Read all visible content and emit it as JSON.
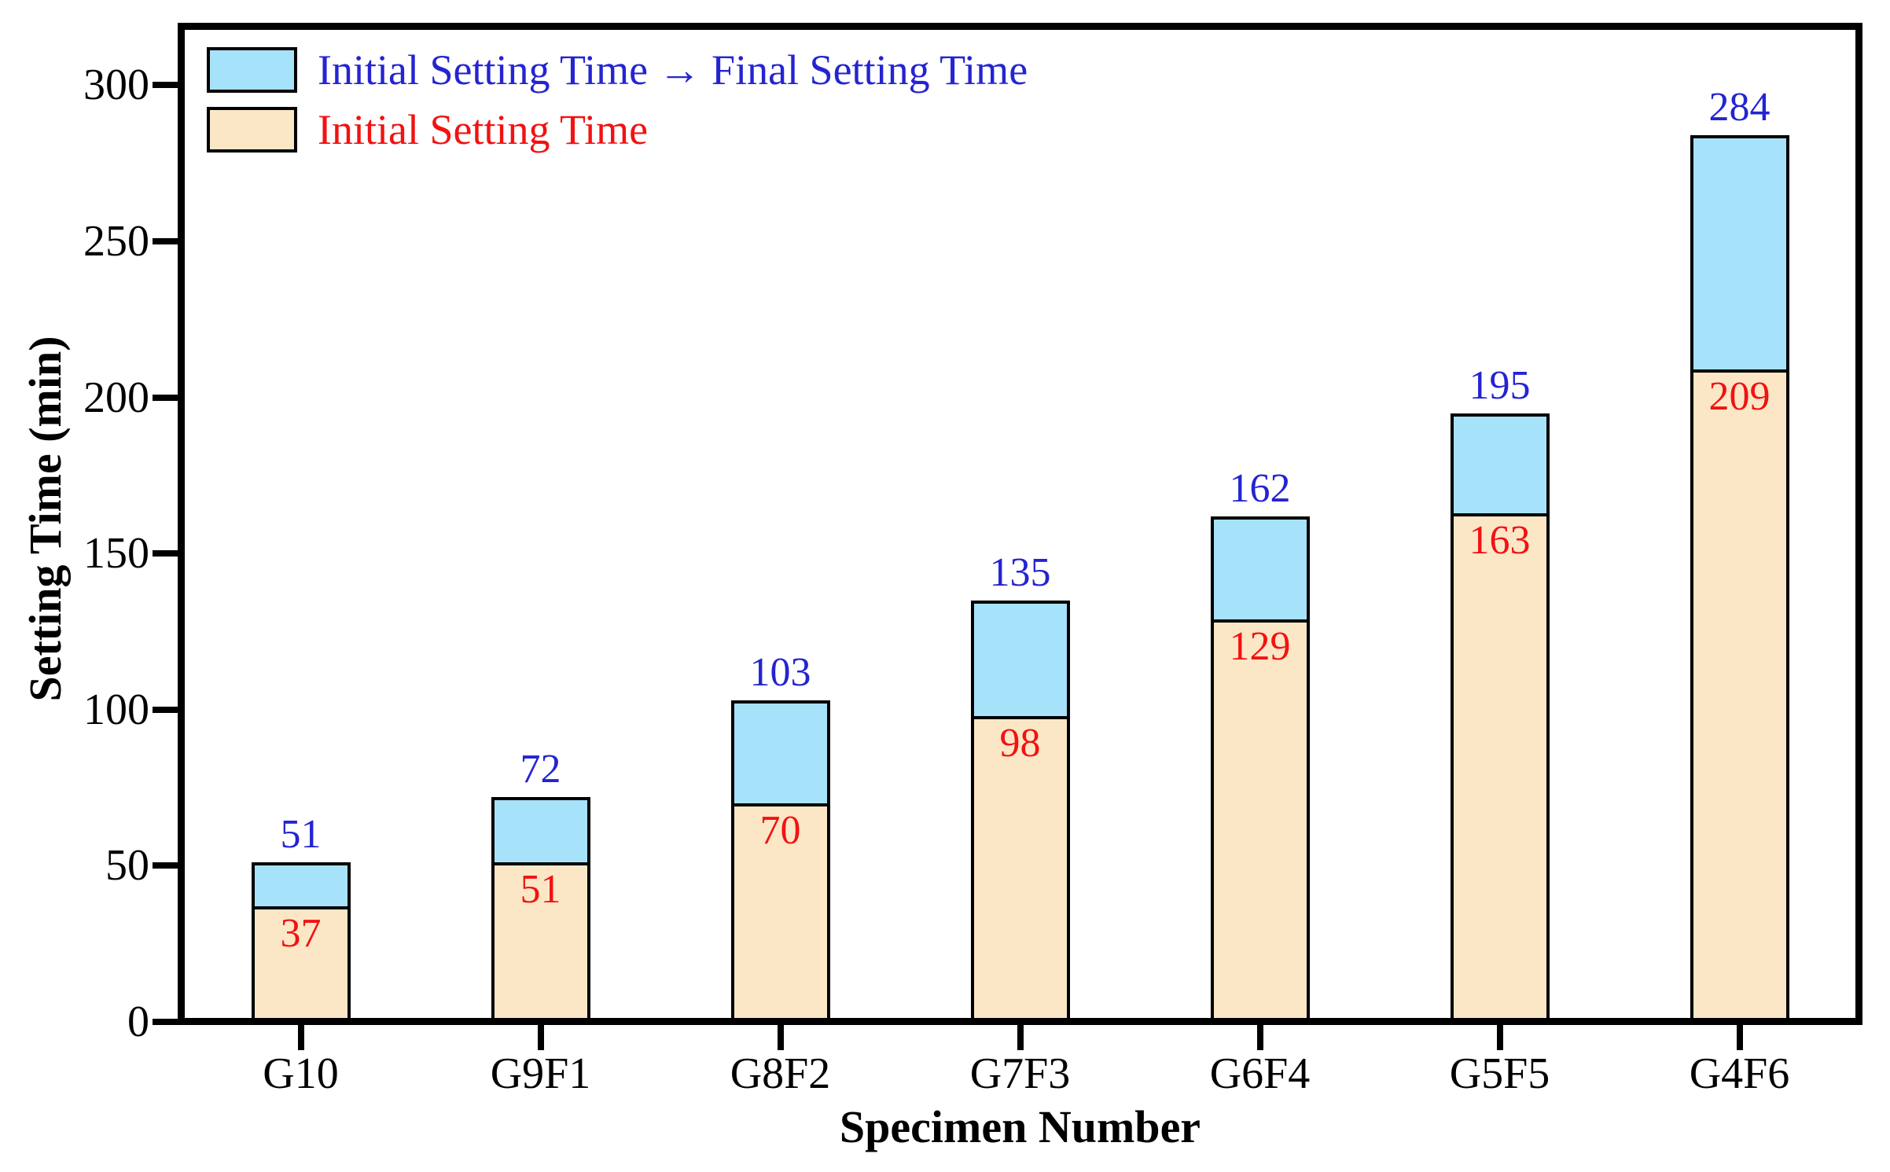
{
  "figure": {
    "background": "#ffffff"
  },
  "axes": {
    "y_title": "Setting Time (min)",
    "x_title": "Specimen Number",
    "y_ticks": [
      0,
      50,
      100,
      150,
      200,
      250,
      300
    ],
    "y_max": 319
  },
  "legend": {
    "items": [
      {
        "label": "Initial Setting Time → Final Setting Time",
        "swatch_color": "#A6E3FB",
        "text_color": "#2424D2"
      },
      {
        "label": "Initial Setting Time",
        "swatch_color": "#FBE7C6",
        "text_color": "#F21212"
      }
    ]
  },
  "chart_data": {
    "type": "bar",
    "stacked": true,
    "title": "",
    "xlabel": "Specimen Number",
    "ylabel": "Setting Time (min)",
    "ylim": [
      0,
      319
    ],
    "grid": false,
    "legend_position": "top-left-inside",
    "categories": [
      "G10",
      "G9F1",
      "G8F2",
      "G7F3",
      "G6F4",
      "G5F5",
      "G4F6"
    ],
    "series": [
      {
        "name": "Initial Setting Time",
        "role": "bottom-segment",
        "values": [
          37,
          51,
          70,
          98,
          129,
          163,
          209
        ],
        "fill_color": "#FBE7C6",
        "label_color": "#F21212",
        "label_position": "inside-top"
      },
      {
        "name": "Initial Setting Time → Final Setting Time",
        "role": "top-segment (total = final setting time)",
        "values": [
          51,
          72,
          103,
          135,
          162,
          195,
          284
        ],
        "fill_color": "#A6E3FB",
        "label_color": "#2424D2",
        "label_position": "above-bar"
      }
    ]
  }
}
